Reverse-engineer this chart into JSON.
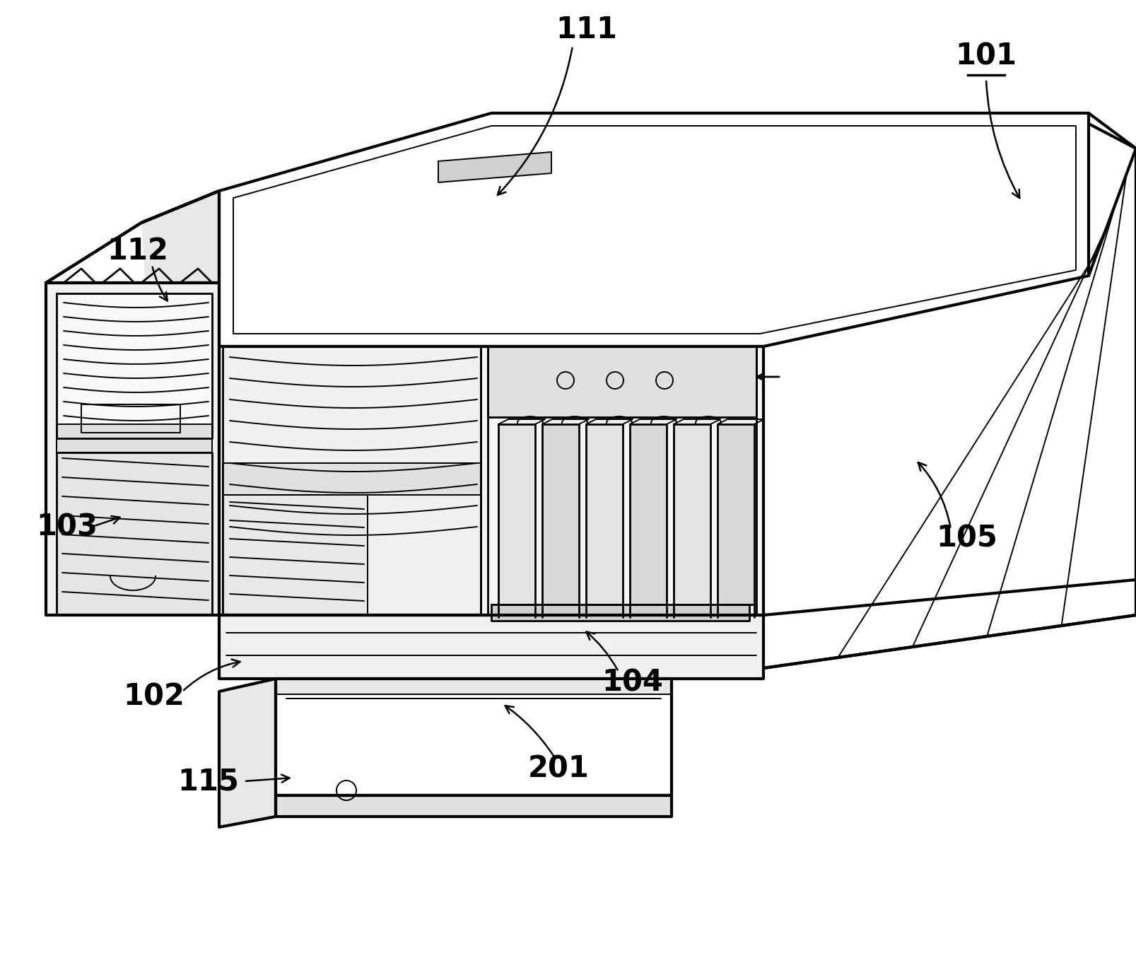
{
  "bg_color": "#ffffff",
  "line_color": "#000000",
  "lw_thick": 3.0,
  "lw_med": 2.0,
  "lw_thin": 1.4,
  "label_fs": 30,
  "figsize": [
    16.07,
    13.72
  ],
  "dpi": 100
}
